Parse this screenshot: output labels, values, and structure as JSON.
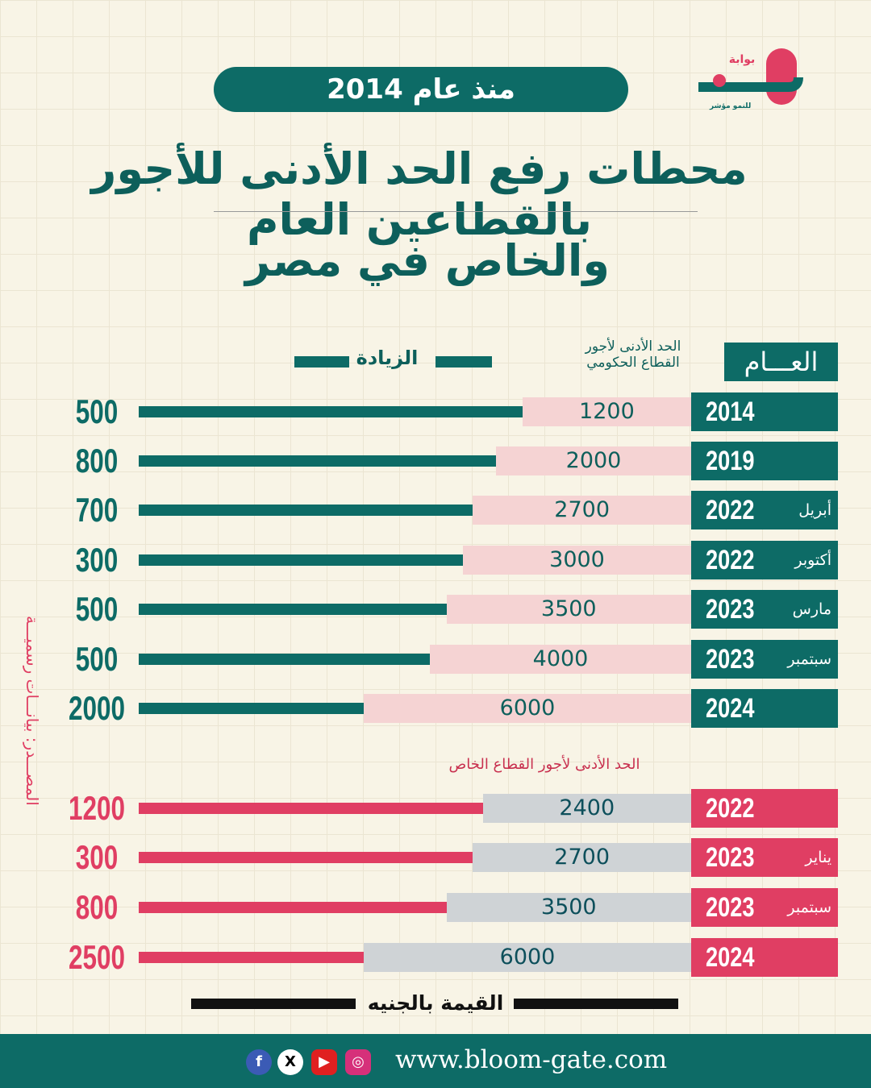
{
  "logo": {
    "text": "بوابة بلوم",
    "tagline": "للنمو مؤشر"
  },
  "since": "منذ عام 2014",
  "title_line1": "محطات رفع الحد الأدنى للأجور بالقطاعين العام",
  "title_line2": "والخاص في مصر",
  "source": "المصـــدر: بيانـــات رسميـــة",
  "legend": {
    "increase": "الزيادة",
    "gov_header": "الحد الأدنى لأجور القطاع الحكومي",
    "year_header": "العـــام",
    "private_header": "الحد الأدنى لأجور القطاع الخاص",
    "unit": "القيمة بالجنيه"
  },
  "colors": {
    "teal": "#0d6b66",
    "pink": "#e03e63",
    "light_pink": "#f5d3d3",
    "gray": "#cfd3d6"
  },
  "chart_data": [
    {
      "type": "bar",
      "title": "الحد الأدنى لأجور القطاع الحكومي",
      "categories": [
        {
          "year": "2014",
          "month": ""
        },
        {
          "year": "2019",
          "month": ""
        },
        {
          "year": "2022",
          "month": "أبريل"
        },
        {
          "year": "2022",
          "month": "أكتوبر"
        },
        {
          "year": "2023",
          "month": "مارس"
        },
        {
          "year": "2023",
          "month": "سبتمبر"
        },
        {
          "year": "2024",
          "month": ""
        }
      ],
      "series": [
        {
          "name": "الحد الأدنى لأجور القطاع الحكومي",
          "values": [
            1200,
            2000,
            2700,
            3000,
            3500,
            4000,
            6000
          ]
        },
        {
          "name": "الزيادة",
          "values": [
            500,
            800,
            700,
            300,
            500,
            500,
            2000
          ]
        }
      ]
    },
    {
      "type": "bar",
      "title": "الحد الأدنى لأجور القطاع الخاص",
      "categories": [
        {
          "year": "2022",
          "month": ""
        },
        {
          "year": "2023",
          "month": "يناير"
        },
        {
          "year": "2023",
          "month": "سبتمبر"
        },
        {
          "year": "2024",
          "month": ""
        }
      ],
      "series": [
        {
          "name": "الحد الأدنى لأجور القطاع الخاص",
          "values": [
            2400,
            2700,
            3500,
            6000
          ]
        },
        {
          "name": "الزيادة",
          "values": [
            1200,
            300,
            800,
            2500
          ]
        }
      ]
    }
  ],
  "footer": {
    "website": "www.bloom-gate.com",
    "social": [
      "facebook-icon",
      "x-icon",
      "youtube-icon",
      "instagram-icon"
    ]
  }
}
